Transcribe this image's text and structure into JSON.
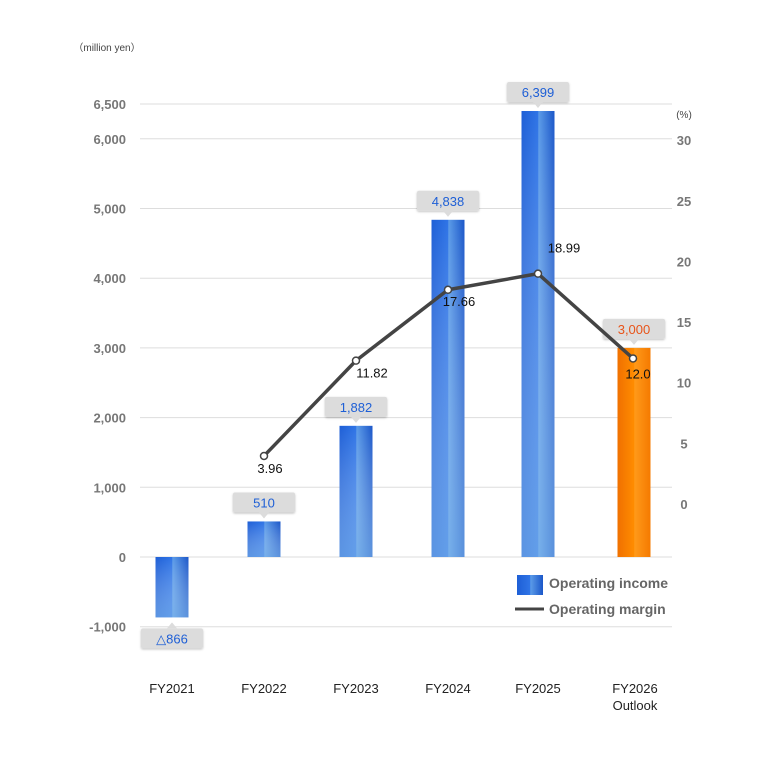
{
  "chart_data": {
    "type": "bar+line",
    "categories": [
      "FY2021",
      "FY2022",
      "FY2023",
      "FY2024",
      "FY2025",
      "FY2026 Outlook"
    ],
    "category_lines": [
      [
        "FY2021"
      ],
      [
        "FY2022"
      ],
      [
        "FY2023"
      ],
      [
        "FY2024"
      ],
      [
        "FY2025"
      ],
      [
        "FY2026",
        "Outlook"
      ]
    ],
    "series": [
      {
        "name": "Operating income",
        "type": "bar",
        "axis": "left",
        "values": [
          -866,
          510,
          1882,
          4838,
          6399,
          3000
        ],
        "labels": [
          "△866",
          "510",
          "1,882",
          "4,838",
          "6,399",
          "3,000"
        ],
        "colors": [
          "#1e5fd6",
          "#1e5fd6",
          "#1e5fd6",
          "#1e5fd6",
          "#1e5fd6",
          "#ff8a00"
        ]
      },
      {
        "name": "Operating margin",
        "type": "line",
        "axis": "right",
        "values": [
          null,
          3.96,
          11.82,
          17.66,
          18.99,
          12.0
        ],
        "labels": [
          "",
          "3.96",
          "11.82",
          "17.66",
          "18.99",
          "12.0"
        ],
        "color": "#444444"
      }
    ],
    "left_axis": {
      "unit": "（million yen）",
      "ylim": [
        -1000,
        6500
      ],
      "ticks": [
        -1000,
        0,
        1000,
        2000,
        3000,
        4000,
        5000,
        6000,
        6500
      ],
      "tick_labels": [
        "-1,000",
        "0",
        "1,000",
        "2,000",
        "3,000",
        "4,000",
        "5,000",
        "6,000",
        "6,500"
      ]
    },
    "right_axis": {
      "unit": "(%)",
      "ticks": [
        0,
        5,
        10,
        15,
        20,
        25,
        30
      ],
      "tick_labels": [
        "0",
        "5",
        "10",
        "15",
        "20",
        "25",
        "30"
      ]
    },
    "grid": true,
    "legend_position": "bottom-right",
    "label_colors": {
      "actual": "#1e5fd6",
      "outlook": "#e8541a"
    }
  }
}
